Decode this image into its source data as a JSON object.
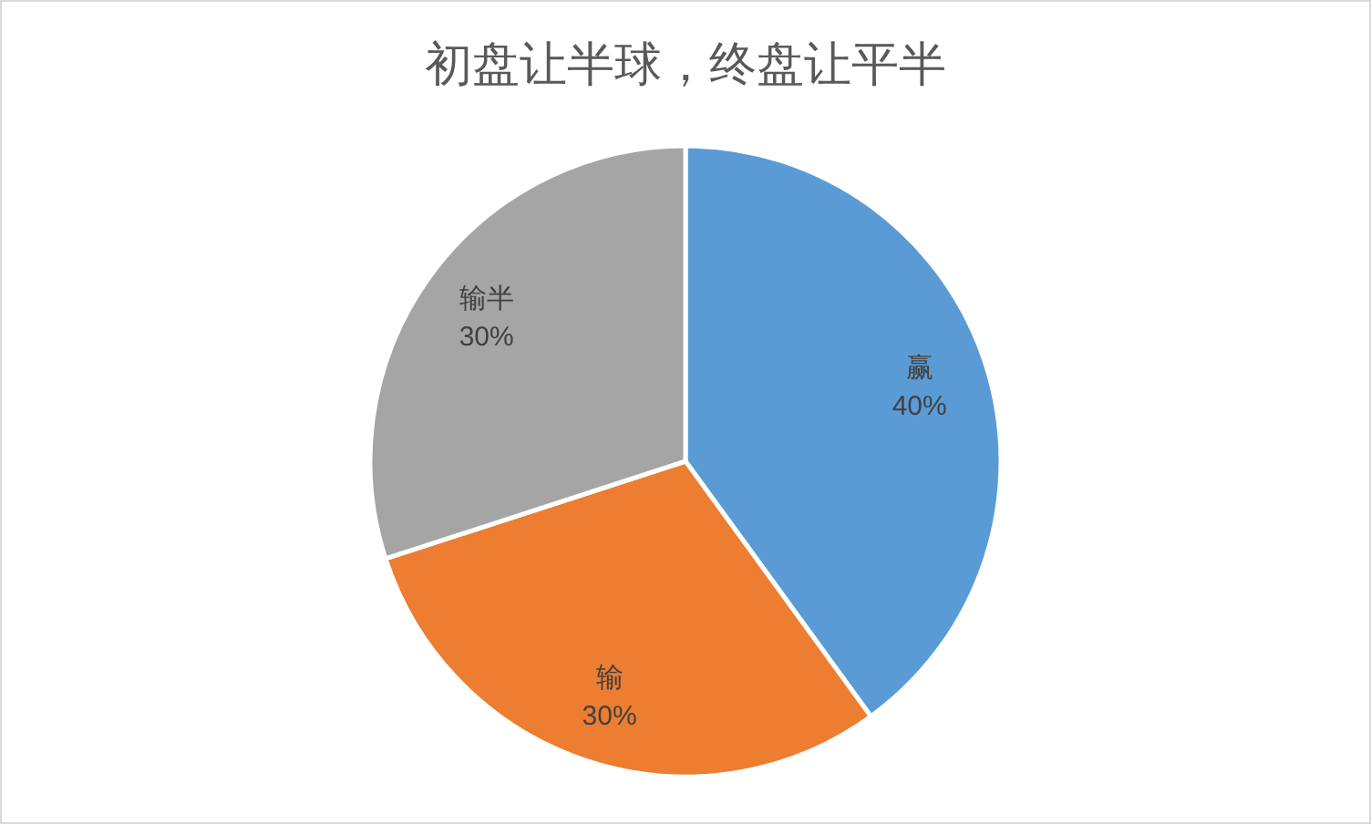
{
  "chart_data": {
    "type": "pie",
    "title": "初盘让半球，终盘让平半",
    "categories": [
      "赢",
      "输",
      "输半"
    ],
    "values": [
      40,
      30,
      30
    ],
    "colors": [
      "#5b9bd5",
      "#ed7d31",
      "#a5a5a5"
    ],
    "value_labels": [
      "40%",
      "30%",
      "30%"
    ]
  }
}
